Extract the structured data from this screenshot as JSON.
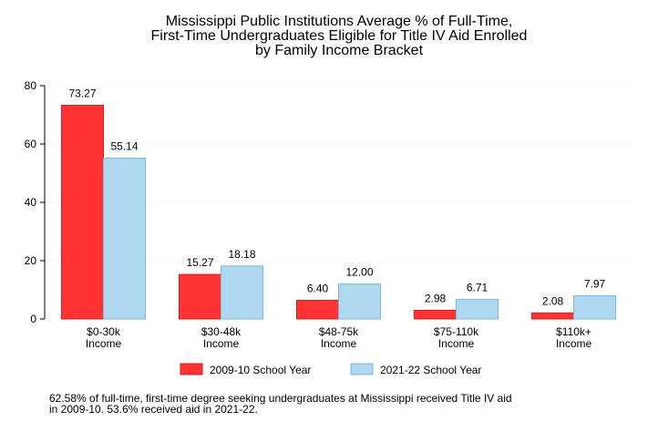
{
  "chart_data": {
    "type": "bar",
    "title_lines": [
      "Mississippi Public Institutions Average % of Full-Time,",
      "First-Time Undergraduates Eligible for Title IV Aid Enrolled",
      "by Family Income Bracket"
    ],
    "categories": [
      [
        "$0-30k",
        "Income"
      ],
      [
        "$30-48k",
        "Income"
      ],
      [
        "$48-75k",
        "Income"
      ],
      [
        "$75-110k",
        "Income"
      ],
      [
        "$110k+",
        "Income"
      ]
    ],
    "series": [
      {
        "name": "2009-10 School Year",
        "color": "#ff3333",
        "border": "#cc1f1f",
        "values": [
          73.27,
          15.27,
          6.4,
          2.98,
          2.08
        ],
        "labels": [
          "73.27",
          "15.27",
          "6.40",
          "2.98",
          "2.08"
        ]
      },
      {
        "name": "2021-22 School Year",
        "color": "#add8f0",
        "border": "#7fb8dc",
        "values": [
          55.14,
          18.18,
          12.0,
          6.71,
          7.97
        ],
        "labels": [
          "55.14",
          "18.18",
          "12.00",
          "6.71",
          "7.97"
        ]
      }
    ],
    "yticks": [
      0,
      20,
      40,
      60,
      80
    ],
    "ylim": [
      0,
      80
    ],
    "grid": true,
    "legend_position": "bottom"
  },
  "footnote": "62.58% of full-time, first-time degree seeking undergraduates at Mississippi received Title IV aid\nin 2009-10. 53.6% received aid in 2021-22."
}
